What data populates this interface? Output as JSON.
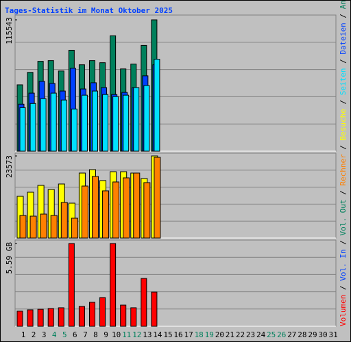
{
  "title": "Tages-Statistik im Monat Oktober 2025",
  "legend_separator": " / ",
  "categories": [
    "1",
    "2",
    "3",
    "4",
    "5",
    "6",
    "7",
    "8",
    "9",
    "10",
    "11",
    "12",
    "13",
    "14",
    "15",
    "16",
    "17",
    "18",
    "19",
    "20",
    "21",
    "22",
    "23",
    "24",
    "25",
    "26",
    "27",
    "28",
    "29",
    "30",
    "31"
  ],
  "category_colors": [
    "#000000",
    "#000000",
    "#000000",
    "#00805c",
    "#00805c",
    "#000000",
    "#000000",
    "#000000",
    "#000000",
    "#000000",
    "#00805c",
    "#00805c",
    "#000000",
    "#000000",
    "#000000",
    "#000000",
    "#000000",
    "#00805c",
    "#00805c",
    "#000000",
    "#000000",
    "#000000",
    "#000000",
    "#000000",
    "#00805c",
    "#00805c",
    "#000000",
    "#000000",
    "#000000",
    "#000000",
    "#000000"
  ],
  "chart_data": [
    {
      "type": "bar",
      "ylim": [
        0,
        115543
      ],
      "yticks": [
        115543
      ],
      "series": [
        {
          "name": "Anfragen",
          "color": "#00805c",
          "values": [
            58380,
            69326,
            79055,
            79663,
            70541,
            88785,
            76015,
            79663,
            77839,
            101556,
            72367,
            76623,
            93043,
            115543,
            null,
            null,
            null,
            null,
            null,
            null,
            null,
            null,
            null,
            null,
            null,
            null,
            null,
            null,
            null,
            null,
            null
          ]
        },
        {
          "name": "Dateien",
          "color": "#0040ff",
          "values": [
            41352,
            51082,
            61420,
            59596,
            52907,
            72974,
            54731,
            60204,
            55947,
            49866,
            51690,
            55947,
            66285,
            76015,
            null,
            null,
            null,
            null,
            null,
            null,
            null,
            null,
            null,
            null,
            null,
            null,
            null,
            null,
            null,
            null,
            null
          ]
        },
        {
          "name": "Seiten",
          "color": "#00e0ff",
          "values": [
            38312,
            41960,
            46217,
            51082,
            45001,
            37095,
            49258,
            52907,
            49866,
            48042,
            49258,
            55947,
            57772,
            80880,
            null,
            null,
            null,
            null,
            null,
            null,
            null,
            null,
            null,
            null,
            null,
            null,
            null,
            null,
            null,
            null,
            null
          ]
        }
      ]
    },
    {
      "type": "bar",
      "ylim": [
        0,
        23573
      ],
      "yticks": [
        23573
      ],
      "series": [
        {
          "name": "Besuche",
          "color": "#ffff00",
          "values": [
            11983,
            13162,
            15126,
            13947,
            15519,
            10019,
            18662,
            19644,
            16501,
            19055,
            19055,
            18662,
            17090,
            23573,
            null,
            null,
            null,
            null,
            null,
            null,
            null,
            null,
            null,
            null,
            null,
            null,
            null,
            null,
            null,
            null,
            null
          ]
        },
        {
          "name": "Rechner",
          "color": "#ff8000",
          "values": [
            6483,
            6286,
            6875,
            6483,
            10215,
            5697,
            14930,
            17680,
            13554,
            16108,
            17287,
            18662,
            15912,
            23180,
            null,
            null,
            null,
            null,
            null,
            null,
            null,
            null,
            null,
            null,
            null,
            null,
            null,
            null,
            null,
            null,
            null
          ]
        }
      ]
    },
    {
      "type": "bar",
      "ylim": [
        0,
        5.59
      ],
      "yticks": [
        {
          "value": 5.59,
          "label": "5.59 GB"
        }
      ],
      "series": [
        {
          "name": "Vol. Out",
          "color": "#00805c",
          "values": [
            null,
            null,
            null,
            null,
            null,
            null,
            null,
            null,
            null,
            null,
            null,
            null,
            null,
            null,
            null,
            null,
            null,
            null,
            null,
            null,
            null,
            null,
            null,
            null,
            null,
            null,
            null,
            null,
            null,
            null,
            null
          ]
        },
        {
          "name": "Vol. In",
          "color": "#0040ff",
          "values": [
            null,
            null,
            null,
            null,
            null,
            null,
            null,
            null,
            null,
            null,
            null,
            null,
            null,
            null,
            null,
            null,
            null,
            null,
            null,
            null,
            null,
            null,
            null,
            null,
            null,
            null,
            null,
            null,
            null,
            null,
            null
          ]
        },
        {
          "name": "Volumen",
          "color": "#ff0000",
          "values": [
            1.02,
            1.11,
            1.15,
            1.2,
            1.25,
            5.59,
            1.34,
            1.62,
            1.94,
            5.59,
            1.43,
            1.25,
            3.23,
            2.31,
            null,
            null,
            null,
            null,
            null,
            null,
            null,
            null,
            null,
            null,
            null,
            null,
            null,
            null,
            null,
            null,
            null
          ]
        }
      ]
    }
  ]
}
